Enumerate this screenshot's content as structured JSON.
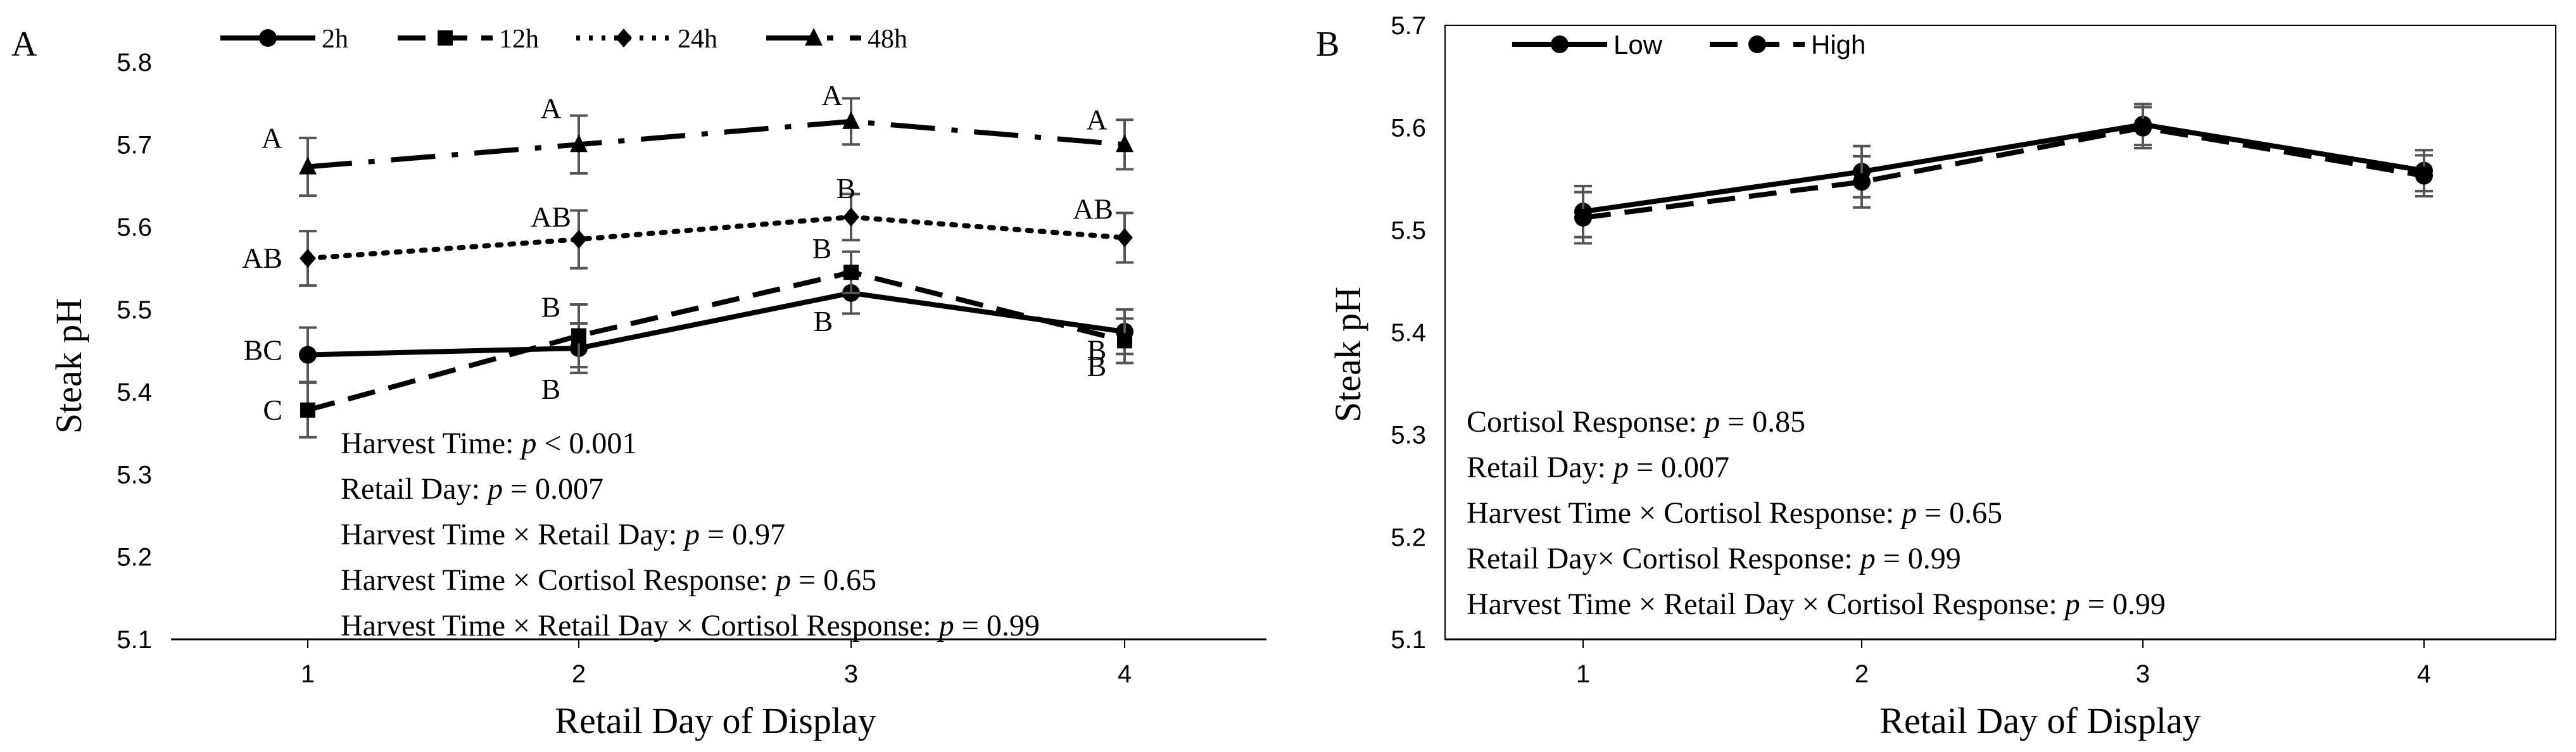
{
  "chart_data": [
    {
      "type": "line",
      "panel_label": "A",
      "xlabel": "Retail Day of Display",
      "ylabel": "Steak pH",
      "categories": [
        "1",
        "2",
        "3",
        "4"
      ],
      "ylim": [
        5.1,
        5.8
      ],
      "yticks": [
        "5.1",
        "5.2",
        "5.3",
        "5.4",
        "5.5",
        "5.6",
        "5.7",
        "5.8"
      ],
      "legend_position": "top",
      "series": [
        {
          "name": "2h",
          "style": "solid",
          "marker": "circle",
          "values": [
            5.445,
            5.453,
            5.52,
            5.473
          ],
          "errors": [
            0.033,
            0.03,
            0.025,
            0.027
          ],
          "letters": [
            "BC",
            "B",
            "B",
            "B"
          ]
        },
        {
          "name": "12h",
          "style": "dash",
          "marker": "square",
          "values": [
            5.378,
            5.468,
            5.545,
            5.462
          ],
          "errors": [
            0.033,
            0.038,
            0.025,
            0.027
          ],
          "letters": [
            "C",
            "B",
            "B",
            "B"
          ]
        },
        {
          "name": "24h",
          "style": "dot",
          "marker": "diamond",
          "values": [
            5.562,
            5.585,
            5.612,
            5.587
          ],
          "errors": [
            0.033,
            0.035,
            0.028,
            0.03
          ],
          "letters": [
            "AB",
            "AB",
            "B",
            "AB"
          ]
        },
        {
          "name": "48h",
          "style": "dashdot",
          "marker": "triangle",
          "values": [
            5.673,
            5.7,
            5.728,
            5.7
          ],
          "errors": [
            0.035,
            0.035,
            0.028,
            0.03
          ],
          "letters": [
            "A",
            "A",
            "A",
            "A"
          ]
        }
      ],
      "annotations": [
        {
          "prefix": "Harvest Time: ",
          "p": "p",
          "value": " < 0.001"
        },
        {
          "prefix": "Retail Day: ",
          "p": "p",
          "value": " = 0.007"
        },
        {
          "prefix": "Harvest Time × Retail Day: ",
          "p": "p",
          "value": " = 0.97"
        },
        {
          "prefix": "Harvest Time × Cortisol Response: ",
          "p": "p",
          "value": " = 0.65"
        },
        {
          "prefix": "Harvest Time × Retail Day × Cortisol Response: ",
          "p": "p",
          "value": " = 0.99"
        }
      ]
    },
    {
      "type": "line",
      "panel_label": "B",
      "xlabel": "Retail Day of Display",
      "ylabel": "Steak pH",
      "categories": [
        "1",
        "2",
        "3",
        "4"
      ],
      "ylim": [
        5.1,
        5.7
      ],
      "yticks": [
        "5.1",
        "5.2",
        "5.3",
        "5.4",
        "5.5",
        "5.6",
        "5.7"
      ],
      "legend_position": "top-left",
      "series": [
        {
          "name": "Low",
          "style": "solid",
          "marker": "circle",
          "values": [
            5.518,
            5.557,
            5.603,
            5.558
          ],
          "errors": [
            0.025,
            0.025,
            0.02,
            0.02
          ]
        },
        {
          "name": "High",
          "style": "dash",
          "marker": "circle",
          "values": [
            5.512,
            5.547,
            5.6,
            5.553
          ],
          "errors": [
            0.025,
            0.025,
            0.02,
            0.02
          ]
        }
      ],
      "annotations": [
        {
          "prefix": "Cortisol Response: ",
          "p": "p",
          "value": " = 0.85"
        },
        {
          "prefix": "Retail Day: ",
          "p": "p",
          "value": " = 0.007"
        },
        {
          "prefix": "Harvest Time × Cortisol Response: ",
          "p": "p",
          "value": " = 0.65"
        },
        {
          "prefix": "Retail Day× Cortisol Response: ",
          "p": "p",
          "value": " = 0.99"
        },
        {
          "prefix": "Harvest Time × Retail Day × Cortisol Response: ",
          "p": "p",
          "value": " = 0.99"
        }
      ]
    }
  ]
}
